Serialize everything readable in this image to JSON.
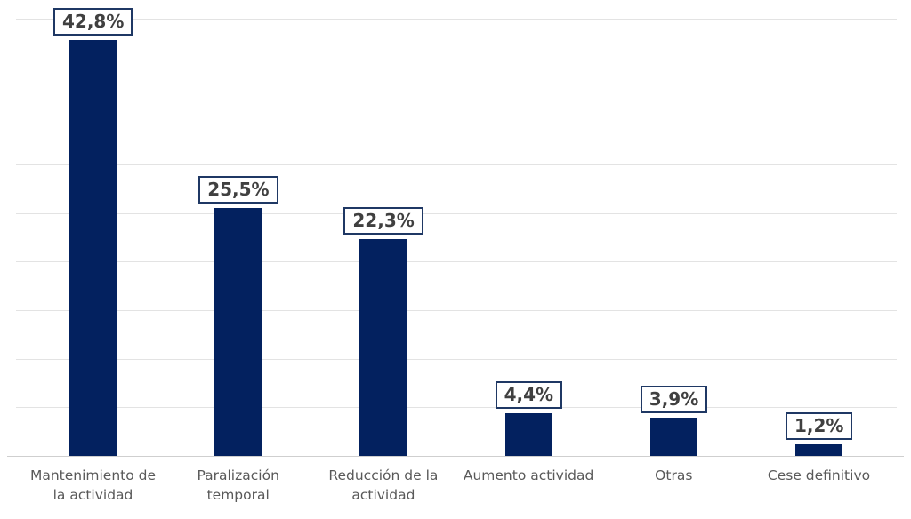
{
  "chart_data": {
    "type": "bar",
    "title": "",
    "xlabel": "",
    "ylabel": "",
    "categories": [
      "Mantenimiento de\nla actividad",
      "Paralización\ntemporal",
      "Reducción de la\nactividad",
      "Aumento actividad",
      "Otras",
      "Cese definitivo"
    ],
    "values": [
      42.8,
      25.5,
      22.3,
      4.4,
      3.9,
      1.2
    ],
    "data_labels": [
      "42,8%",
      "25,5%",
      "22,3%",
      "4,4%",
      "3,9%",
      "1,2%"
    ],
    "ylim": [
      0,
      45
    ],
    "gridline_step": 5,
    "grid": true,
    "legend": false,
    "y_axis_labels_visible": false,
    "colors": {
      "bar": "#03215f",
      "label_box_border": "#1f3864",
      "label_text": "#404040",
      "category_text": "#595959",
      "gridline": "#e3e3e3",
      "axis_line": "#cfcfcf",
      "background": "#ffffff"
    }
  }
}
